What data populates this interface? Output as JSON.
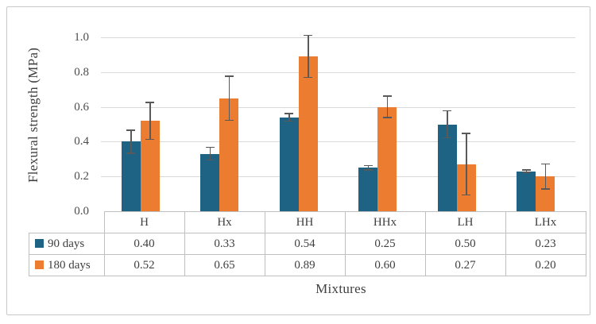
{
  "figure": {
    "y_axis_label": "Flexural strength (MPa)",
    "x_axis_label": "Mixtures"
  },
  "chart_data": {
    "type": "bar",
    "title": "",
    "xlabel": "Mixtures",
    "ylabel": "Flexural strength (MPa)",
    "categories": [
      "H",
      "Hx",
      "HH",
      "HHx",
      "LH",
      "LHx"
    ],
    "series": [
      {
        "name": "90 days",
        "color": "#1f6384",
        "values": [
          0.4,
          0.33,
          0.54,
          0.25,
          0.5,
          0.23
        ],
        "errors": [
          0.07,
          0.04,
          0.025,
          0.015,
          0.08,
          0.01
        ]
      },
      {
        "name": "180 days",
        "color": "#ec7c30",
        "values": [
          0.52,
          0.65,
          0.89,
          0.6,
          0.27,
          0.2
        ],
        "errors": [
          0.11,
          0.13,
          0.125,
          0.065,
          0.18,
          0.075
        ]
      }
    ],
    "ylim": [
      0,
      1.0
    ],
    "yticks": [
      {
        "value": 0.0,
        "label": "0.0"
      },
      {
        "value": 0.2,
        "label": "0.2"
      },
      {
        "value": 0.4,
        "label": "0.4"
      },
      {
        "value": 0.6,
        "label": "0.6"
      },
      {
        "value": 0.8,
        "label": "0.8"
      },
      {
        "value": 1.0,
        "label": "1.0"
      }
    ],
    "grid": true,
    "gridline_color": "#d9d9d9",
    "error_bar_color": "#595959",
    "legend_position": "data-table-left"
  },
  "data_table": {
    "column_headers": [
      "H",
      "Hx",
      "HH",
      "HHx",
      "LH",
      "LHx"
    ],
    "rows": [
      {
        "legend": "90 days",
        "swatch_color": "#1f6384",
        "cells": [
          "0.40",
          "0.33",
          "0.54",
          "0.25",
          "0.50",
          "0.23"
        ]
      },
      {
        "legend": "180 days",
        "swatch_color": "#ec7c30",
        "cells": [
          "0.52",
          "0.65",
          "0.89",
          "0.60",
          "0.27",
          "0.20"
        ]
      }
    ]
  }
}
